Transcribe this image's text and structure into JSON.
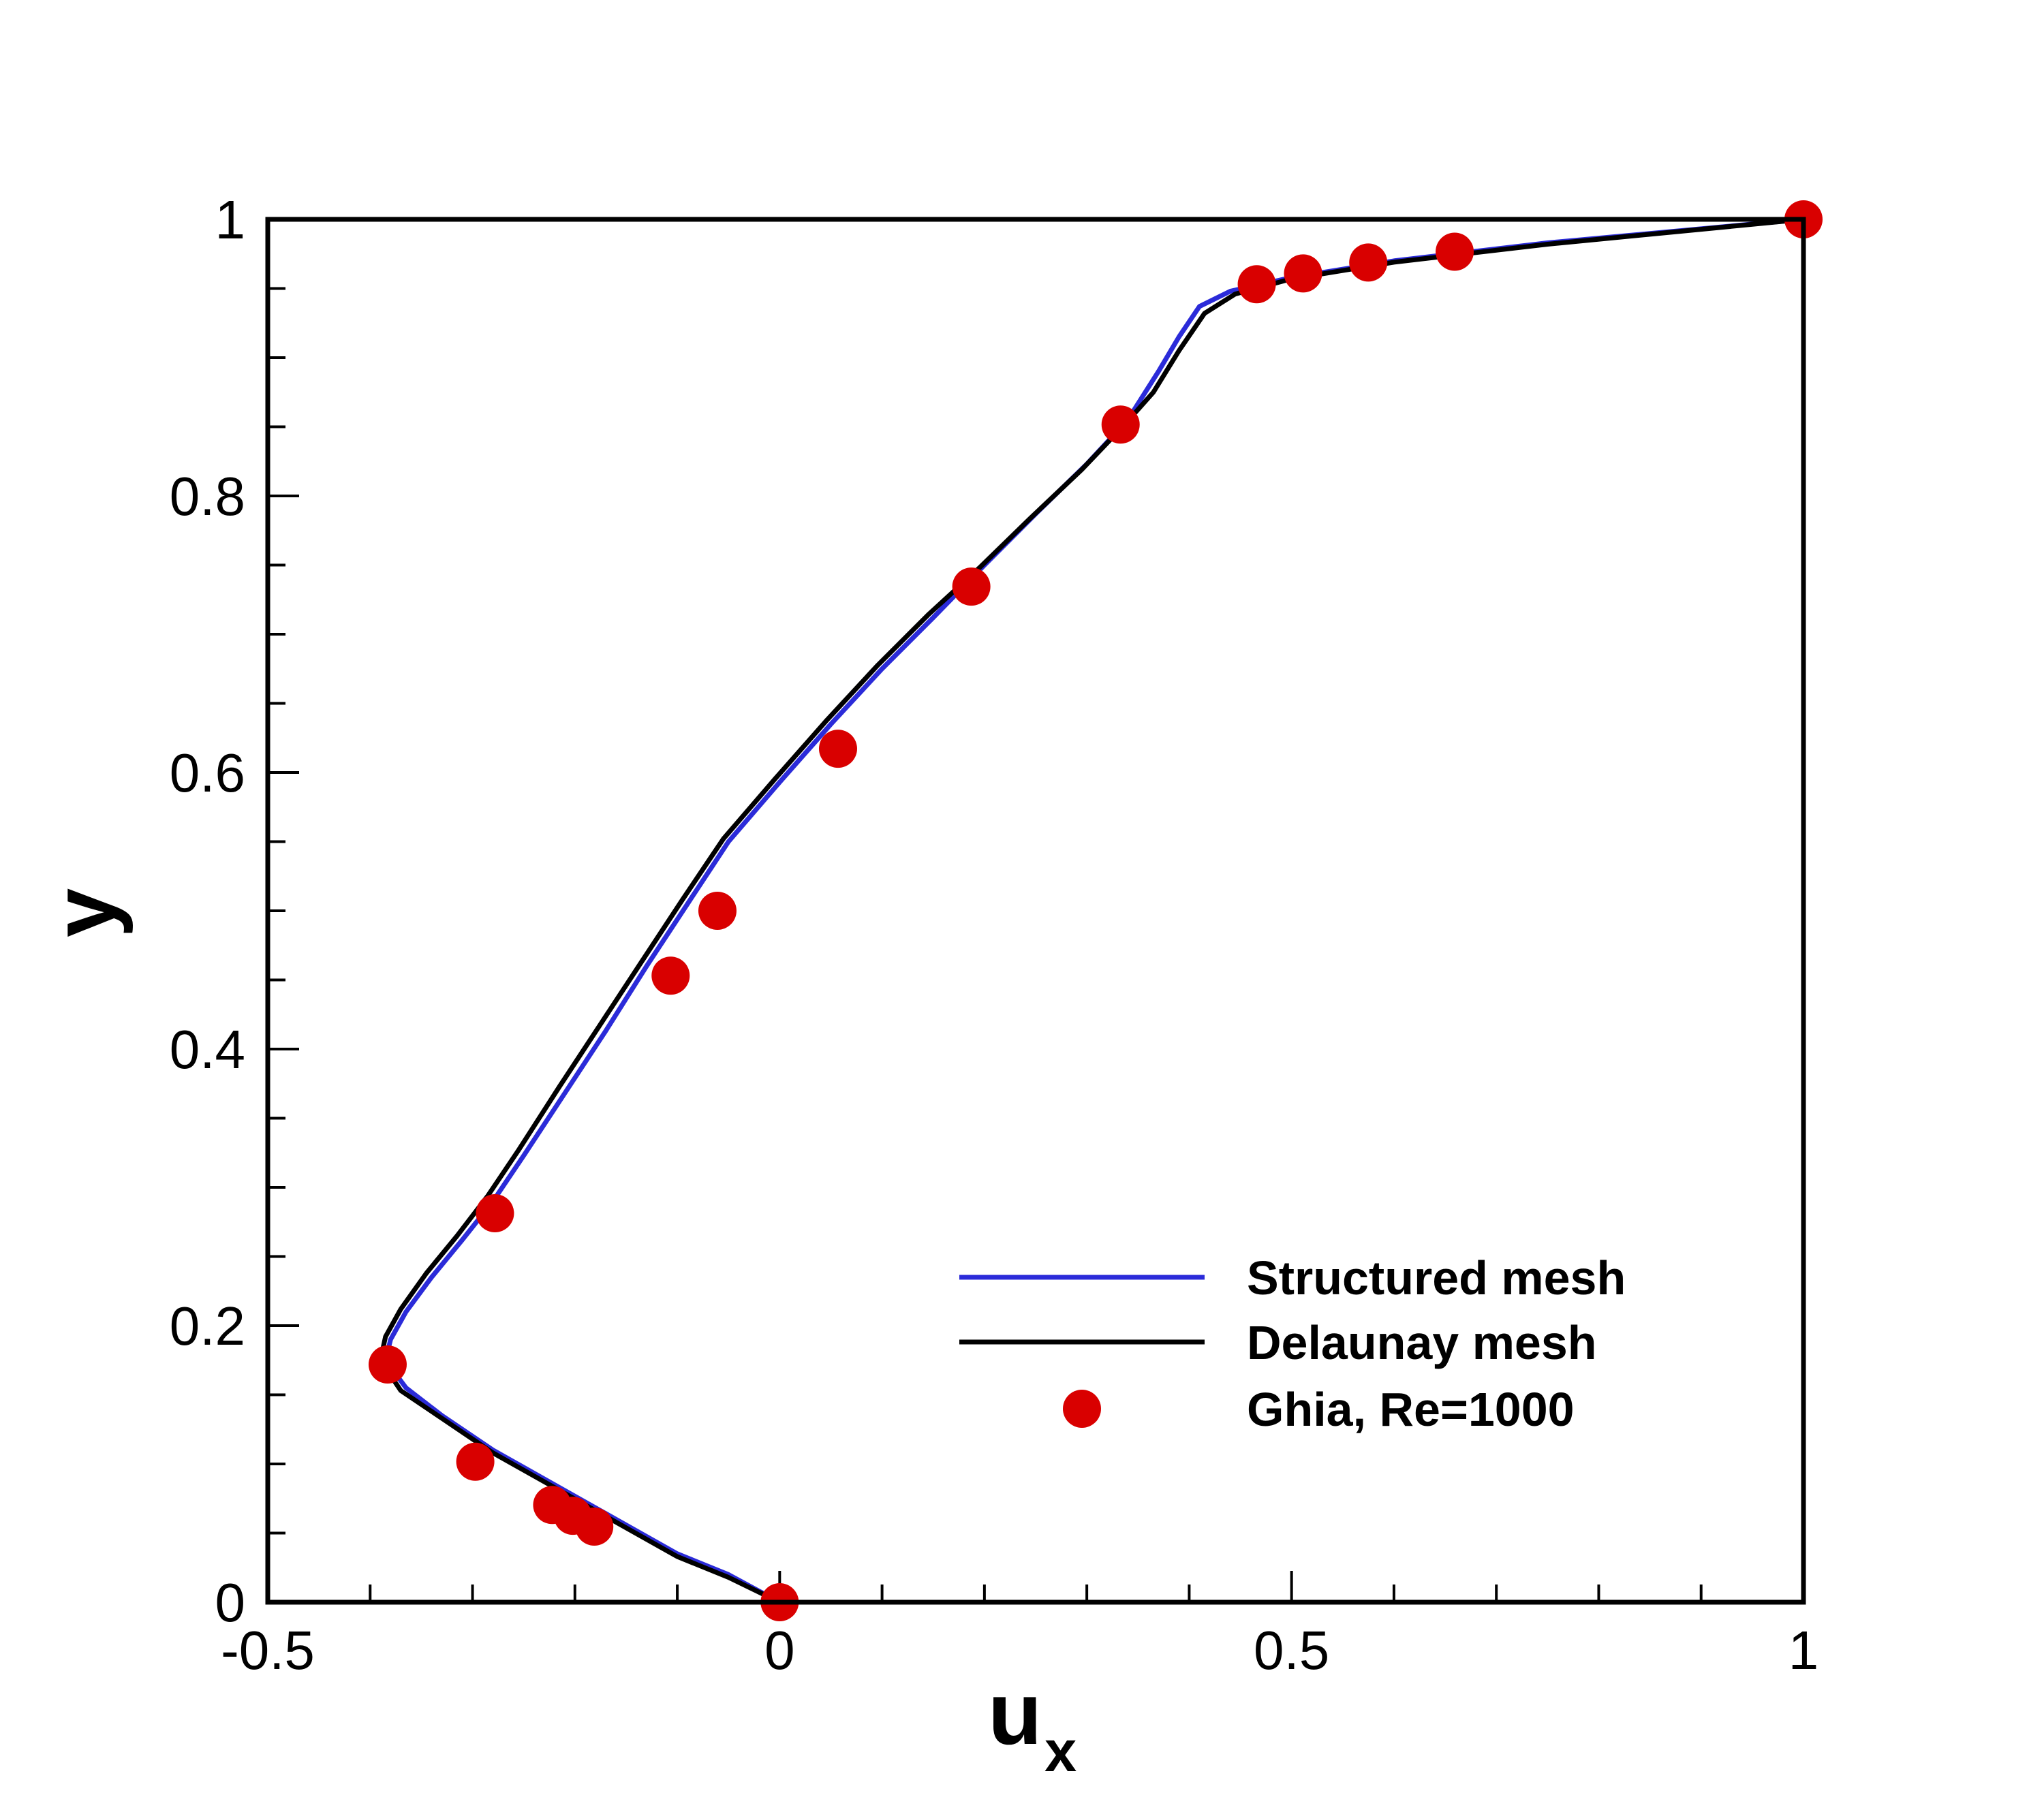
{
  "chart_data": {
    "type": "line",
    "title": "",
    "xlabel": "u",
    "xlabel_sub": "x",
    "ylabel": "y",
    "xlim": [
      -0.5,
      1
    ],
    "ylim": [
      0,
      1
    ],
    "x_ticks": [
      "-0.5",
      "0",
      "0.5",
      "1"
    ],
    "y_ticks": [
      "0",
      "0.2",
      "0.4",
      "0.6",
      "0.8",
      "1"
    ],
    "grid": false,
    "legend_position": "bottom-right",
    "colors": {
      "structured": "#2b2bd9",
      "delaunay": "#000000",
      "ghia": "#d90000"
    },
    "series": [
      {
        "name": "Structured mesh",
        "style": "line",
        "points": [
          [
            0.0,
            0.0
          ],
          [
            -0.05,
            0.02
          ],
          [
            -0.1,
            0.035
          ],
          [
            -0.16,
            0.06
          ],
          [
            -0.22,
            0.085
          ],
          [
            -0.28,
            0.11
          ],
          [
            -0.33,
            0.135
          ],
          [
            -0.365,
            0.155
          ],
          [
            -0.385,
            0.175
          ],
          [
            -0.38,
            0.19
          ],
          [
            -0.365,
            0.21
          ],
          [
            -0.34,
            0.235
          ],
          [
            -0.31,
            0.262
          ],
          [
            -0.28,
            0.29
          ],
          [
            -0.25,
            0.323
          ],
          [
            -0.21,
            0.368
          ],
          [
            -0.17,
            0.413
          ],
          [
            -0.13,
            0.46
          ],
          [
            -0.09,
            0.505
          ],
          [
            -0.05,
            0.55
          ],
          [
            0.0,
            0.593
          ],
          [
            0.05,
            0.635
          ],
          [
            0.1,
            0.675
          ],
          [
            0.15,
            0.712
          ],
          [
            0.2,
            0.75
          ],
          [
            0.25,
            0.787
          ],
          [
            0.3,
            0.823
          ],
          [
            0.34,
            0.855
          ],
          [
            0.37,
            0.89
          ],
          [
            0.39,
            0.915
          ],
          [
            0.41,
            0.937
          ],
          [
            0.44,
            0.948
          ],
          [
            0.5,
            0.958
          ],
          [
            0.6,
            0.97
          ],
          [
            0.75,
            0.983
          ],
          [
            1.0,
            1.0
          ]
        ]
      },
      {
        "name": "Delaunay mesh",
        "style": "line",
        "points": [
          [
            0.0,
            0.0
          ],
          [
            -0.05,
            0.018
          ],
          [
            -0.1,
            0.033
          ],
          [
            -0.16,
            0.058
          ],
          [
            -0.22,
            0.083
          ],
          [
            -0.28,
            0.108
          ],
          [
            -0.33,
            0.133
          ],
          [
            -0.37,
            0.153
          ],
          [
            -0.39,
            0.175
          ],
          [
            -0.385,
            0.192
          ],
          [
            -0.37,
            0.212
          ],
          [
            -0.345,
            0.238
          ],
          [
            -0.315,
            0.265
          ],
          [
            -0.285,
            0.294
          ],
          [
            -0.255,
            0.327
          ],
          [
            -0.215,
            0.373
          ],
          [
            -0.175,
            0.418
          ],
          [
            -0.135,
            0.463
          ],
          [
            -0.095,
            0.508
          ],
          [
            -0.055,
            0.552
          ],
          [
            -0.005,
            0.595
          ],
          [
            0.045,
            0.637
          ],
          [
            0.095,
            0.677
          ],
          [
            0.145,
            0.714
          ],
          [
            0.195,
            0.748
          ],
          [
            0.245,
            0.784
          ],
          [
            0.295,
            0.819
          ],
          [
            0.335,
            0.85
          ],
          [
            0.365,
            0.875
          ],
          [
            0.39,
            0.905
          ],
          [
            0.415,
            0.932
          ],
          [
            0.445,
            0.946
          ],
          [
            0.5,
            0.957
          ],
          [
            0.6,
            0.969
          ],
          [
            0.75,
            0.982
          ],
          [
            1.0,
            1.0
          ]
        ]
      },
      {
        "name": "Ghia, Re=1000",
        "style": "marker",
        "points": [
          [
            1.0,
            1.0
          ],
          [
            0.6593,
            0.9766
          ],
          [
            0.5749,
            0.9688
          ],
          [
            0.5112,
            0.9609
          ],
          [
            0.466,
            0.9531
          ],
          [
            0.333,
            0.8516
          ],
          [
            0.1872,
            0.7344
          ],
          [
            0.057,
            0.6172
          ],
          [
            -0.0608,
            0.5
          ],
          [
            -0.1065,
            0.4531
          ],
          [
            -0.2781,
            0.2813
          ],
          [
            -0.3829,
            0.1719
          ],
          [
            -0.2973,
            0.1016
          ],
          [
            -0.2222,
            0.0703
          ],
          [
            -0.202,
            0.0625
          ],
          [
            -0.1811,
            0.0547
          ],
          [
            0.0,
            0.0
          ]
        ]
      }
    ]
  }
}
